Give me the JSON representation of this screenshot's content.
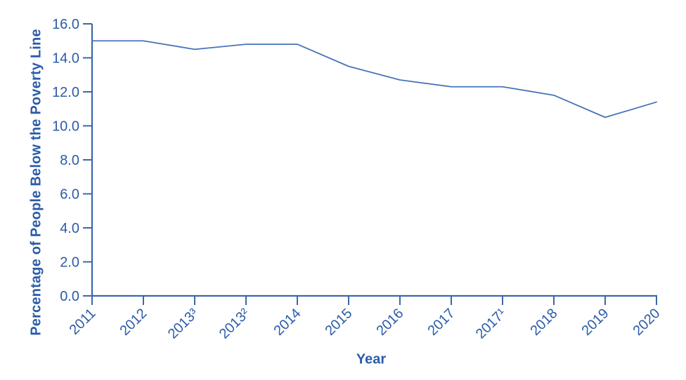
{
  "chart_data": {
    "type": "line",
    "title": "",
    "xlabel": "Year",
    "ylabel": "Percentage of People Below the Poverty Line",
    "categories": [
      "2011",
      "2012",
      "2013³",
      "2013²",
      "2014",
      "2015",
      "2016",
      "2017",
      "2017¹",
      "2018",
      "2019",
      "2020"
    ],
    "values": [
      15.0,
      15.0,
      14.5,
      14.8,
      14.8,
      13.5,
      12.7,
      12.3,
      12.3,
      11.8,
      10.5,
      11.4
    ],
    "ylim": [
      0,
      16
    ],
    "yticks": [
      0,
      2,
      4,
      6,
      8,
      10,
      12,
      14,
      16
    ],
    "ytick_labels": [
      "0.0",
      "2.0",
      "4.0",
      "6.0",
      "8.0",
      "10.0",
      "12.0",
      "14.0",
      "16.0"
    ],
    "grid": false,
    "legend": "none",
    "colors": {
      "line": "#4674b9",
      "axis": "#3c68aa",
      "text": "#2b5ba8"
    }
  }
}
